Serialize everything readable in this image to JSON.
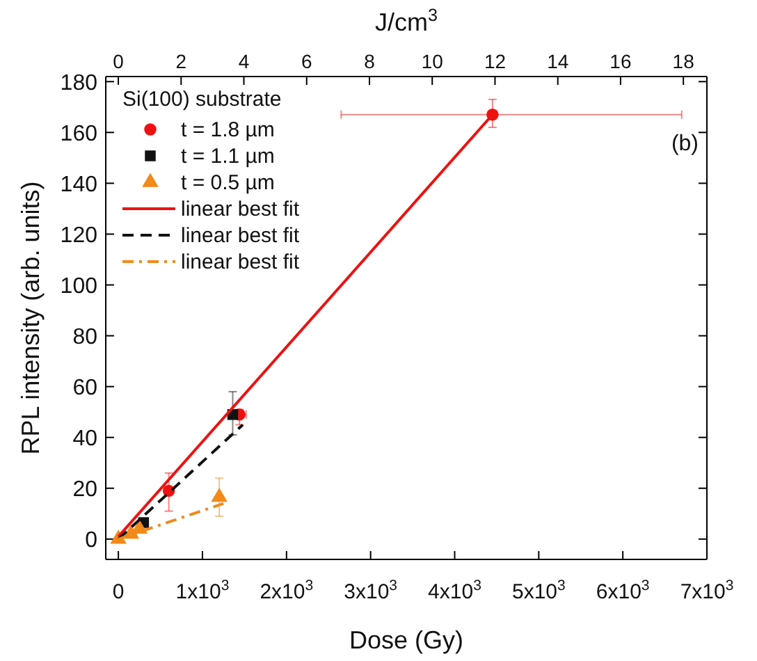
{
  "chart_data": {
    "type": "scatter",
    "xlabel": "Dose (Gy)",
    "ylabel": "RPL intensity (arb. units)",
    "x2label": "J/cm$^{3}$",
    "legend_title": "Si(100) substrate",
    "legend": "top left",
    "annotations": [
      "(b)"
    ],
    "xlim": [
      -150,
      7000
    ],
    "xticks": [
      0,
      {
        "value": 1000,
        "label": "1x10$^{3}$"
      },
      {
        "value": 2000,
        "label": "2x10$^{3}$"
      },
      {
        "value": 3000,
        "label": "3x10$^{3}$"
      },
      {
        "value": 4000,
        "label": "4x10$^{3}$"
      },
      {
        "value": 5000,
        "label": "5x10$^{3}$"
      },
      {
        "value": 6000,
        "label": "6x10$^{3}$"
      },
      {
        "value": 7000,
        "label": "7x10$^{3}$"
      }
    ],
    "x2lim": [
      -0.4,
      18.75
    ],
    "x2ticks": [
      0,
      2,
      4,
      6,
      8,
      10,
      12,
      14,
      16,
      18
    ],
    "ylim": [
      -8,
      182
    ],
    "yticks": [
      0,
      20,
      40,
      60,
      80,
      100,
      120,
      140,
      160,
      180
    ],
    "series": [
      {
        "name": "t = 1.8 µm",
        "marker": "circle",
        "color": "#ee1111",
        "x": [
          600,
          1440,
          4450
        ],
        "values": [
          19,
          49,
          167
        ],
        "errors": [
          [
            11,
            26
          ],
          [
            45,
            51
          ],
          [
            162,
            173
          ]
        ],
        "xerrors": [
          null,
          [
            1360,
            1520
          ],
          [
            2650,
            6700
          ]
        ]
      },
      {
        "name": "t = 1.1 µm",
        "marker": "square",
        "color": "#111111",
        "x": [
          300,
          1360
        ],
        "values": [
          6.5,
          49
        ],
        "errors": [
          null,
          [
            41,
            58
          ]
        ]
      },
      {
        "name": "t = 0.5 µm",
        "marker": "triangle",
        "color": "#f28a1a",
        "x": [
          0,
          150,
          250,
          1200
        ],
        "values": [
          0,
          2,
          4,
          16.5
        ],
        "errors": [
          null,
          null,
          null,
          [
            9,
            24
          ]
        ]
      },
      {
        "name": "linear best fit",
        "type": "line",
        "line_style": "solid",
        "color": "#ee1111",
        "x": [
          0,
          4450
        ],
        "values": [
          1,
          167
        ]
      },
      {
        "name": "linear best fit",
        "type": "line",
        "line_style": "dashed",
        "color": "#111111",
        "x": [
          0,
          1480
        ],
        "values": [
          0,
          45
        ]
      },
      {
        "name": "linear best fit",
        "type": "line",
        "line_style": "dashdot",
        "color": "#f28a1a",
        "x": [
          0,
          1250
        ],
        "values": [
          0,
          14
        ]
      }
    ]
  }
}
